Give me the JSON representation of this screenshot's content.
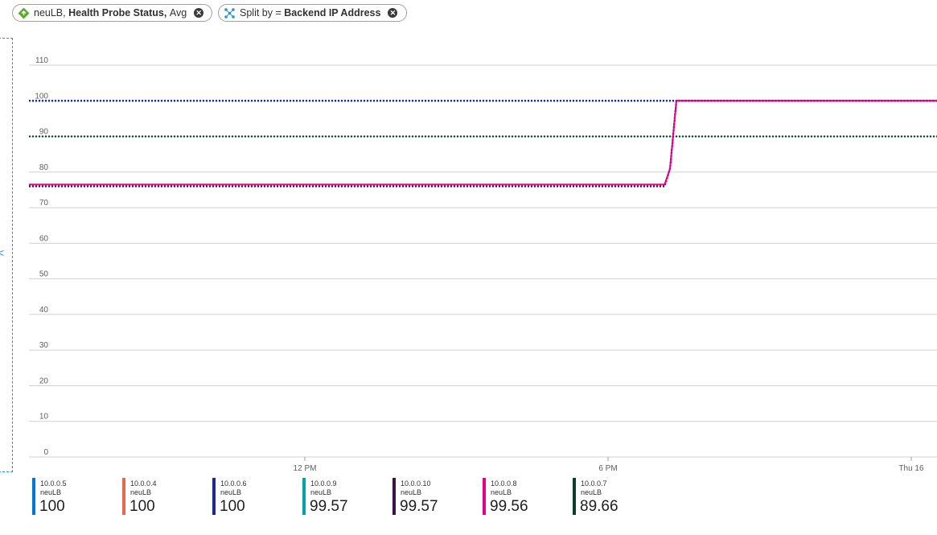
{
  "filters": {
    "metric": {
      "resource": "neuLB,",
      "metric_name": "Health Probe Status,",
      "aggregation": "Avg"
    },
    "split": {
      "prefix": "Split by =",
      "dimension": "Backend IP Address"
    }
  },
  "chart_data": {
    "type": "line",
    "ylim": [
      0,
      110
    ],
    "y_ticks": [
      0,
      10,
      20,
      30,
      40,
      50,
      60,
      70,
      80,
      90,
      100,
      110
    ],
    "x_tick_labels": [
      "12 PM",
      "6 PM",
      "Thu 16"
    ],
    "grid": true,
    "series": [
      {
        "name": "10.0.0.5",
        "resource": "neuLB",
        "summary": "100",
        "color": "#0078d4",
        "style": "dotted",
        "points": [
          [
            0,
            100
          ],
          [
            1,
            100
          ]
        ]
      },
      {
        "name": "10.0.0.4",
        "resource": "neuLB",
        "summary": "100",
        "color": "#e8694a",
        "style": "dotted",
        "points": [
          [
            0,
            100
          ],
          [
            1,
            100
          ]
        ]
      },
      {
        "name": "10.0.0.6",
        "resource": "neuLB",
        "summary": "100",
        "color": "#1b2a8c",
        "style": "dotted",
        "points": [
          [
            0,
            100
          ],
          [
            1,
            100
          ]
        ]
      },
      {
        "name": "10.0.0.9",
        "resource": "neuLB",
        "summary": "99.57",
        "color": "#00a4a6",
        "style": "dotted",
        "points": [
          [
            0,
            76
          ],
          [
            0.7,
            76
          ],
          [
            0.706,
            81
          ],
          [
            0.713,
            100
          ],
          [
            1,
            100
          ]
        ]
      },
      {
        "name": "10.0.0.10",
        "resource": "neuLB",
        "summary": "99.57",
        "color": "#3d1343",
        "style": "dotted",
        "points": [
          [
            0,
            76
          ],
          [
            0.7,
            76
          ],
          [
            0.706,
            81
          ],
          [
            0.713,
            100
          ],
          [
            1,
            100
          ]
        ]
      },
      {
        "name": "10.0.0.8",
        "resource": "neuLB",
        "summary": "99.56",
        "color": "#e3008c",
        "style": "solid",
        "points": [
          [
            0,
            76.5
          ],
          [
            0.7,
            76.5
          ],
          [
            0.706,
            81
          ],
          [
            0.713,
            100
          ],
          [
            1,
            100
          ]
        ]
      },
      {
        "name": "10.0.0.7",
        "resource": "neuLB",
        "summary": "89.66",
        "color": "#0b3d2c",
        "style": "dotted",
        "points": [
          [
            0,
            90
          ],
          [
            1,
            90
          ]
        ]
      }
    ]
  }
}
